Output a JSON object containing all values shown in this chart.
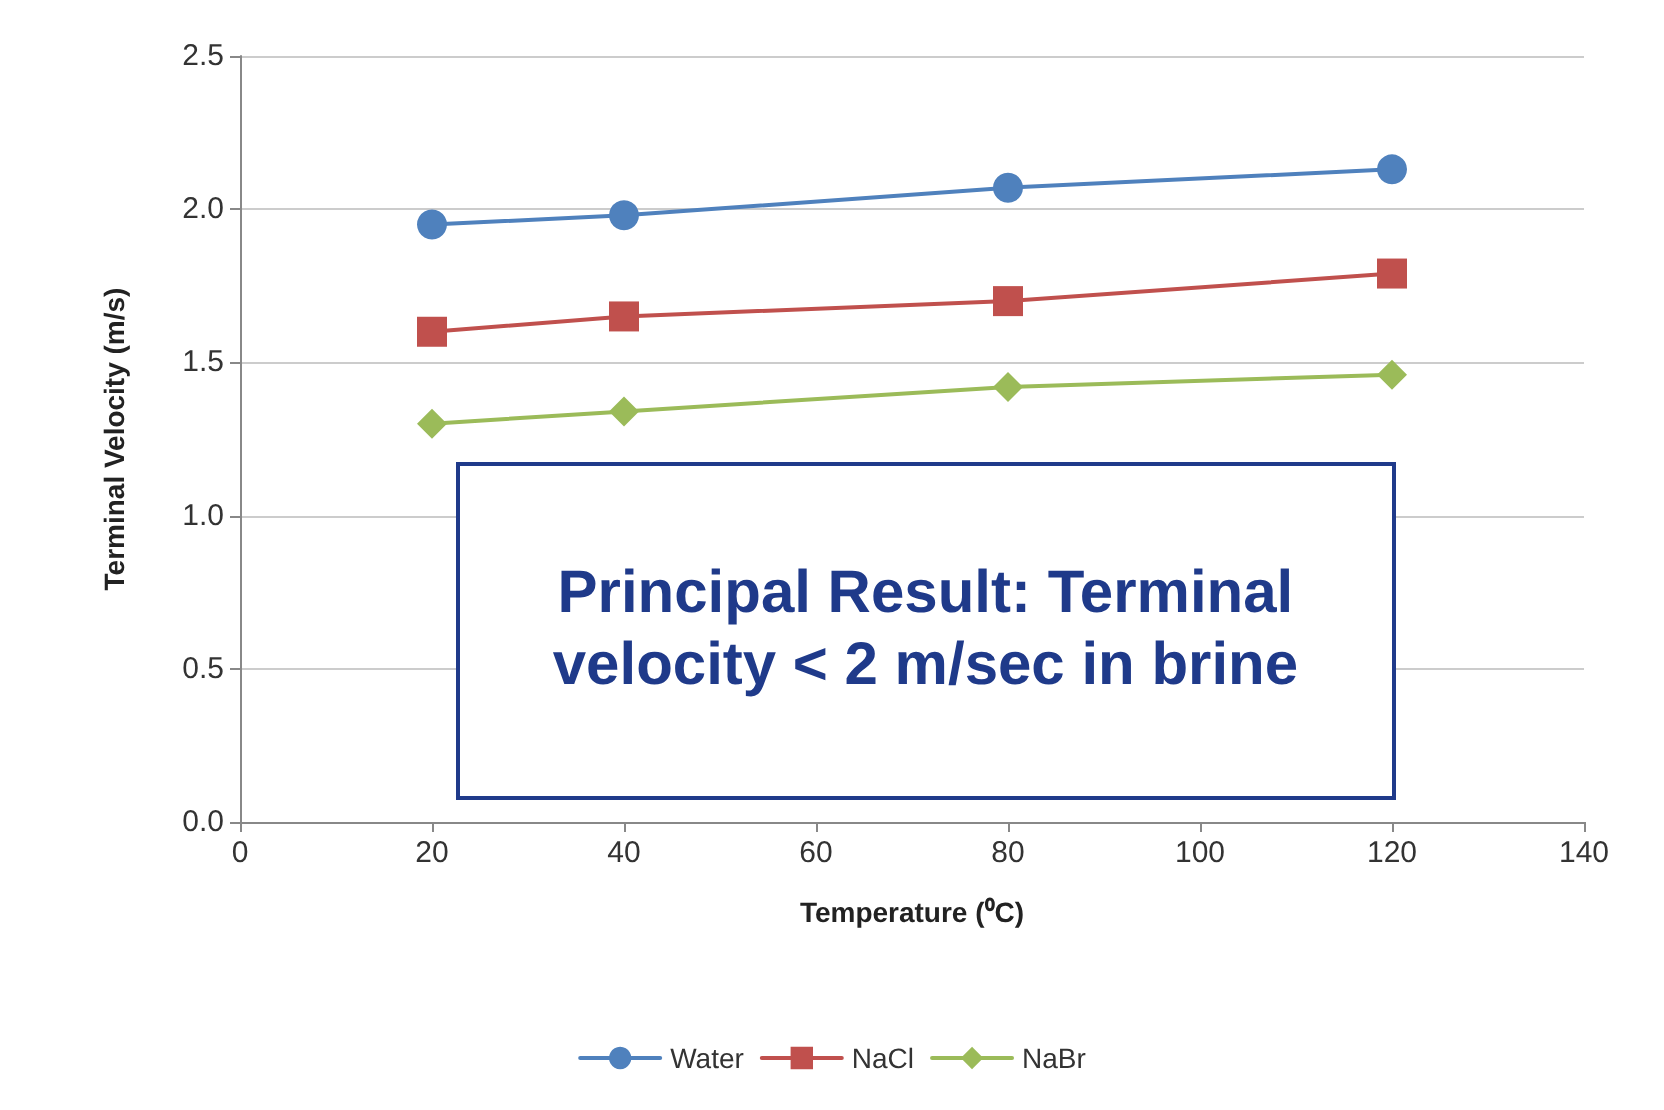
{
  "chart_data": {
    "type": "line",
    "xlabel": "Temperature (⁰C)",
    "ylabel": "Terminal Velocity (m/s)",
    "x": [
      20,
      40,
      80,
      120
    ],
    "series": [
      {
        "name": "Water",
        "color": "#4f81bd",
        "marker": "circle",
        "values": [
          1.95,
          1.98,
          2.07,
          2.13
        ]
      },
      {
        "name": "NaCl",
        "color": "#c0504d",
        "marker": "square",
        "values": [
          1.6,
          1.65,
          1.7,
          1.79
        ]
      },
      {
        "name": "NaBr",
        "color": "#9bbb59",
        "marker": "diamond",
        "values": [
          1.3,
          1.34,
          1.42,
          1.46
        ]
      }
    ],
    "xlim": [
      0,
      140
    ],
    "xticks": [
      0,
      20,
      40,
      60,
      80,
      100,
      120,
      140
    ],
    "ylim": [
      0,
      2.5
    ],
    "yticks": [
      {
        "value": 0,
        "label": "0.0"
      },
      0.5,
      {
        "value": 1,
        "label": "1.0"
      },
      1.5,
      {
        "value": 2,
        "label": "2.0"
      },
      2.5
    ],
    "grid": "y",
    "legend": "bottom",
    "annotations": [
      "Principal Result: Terminal velocity < 2 m/sec in brine"
    ]
  }
}
